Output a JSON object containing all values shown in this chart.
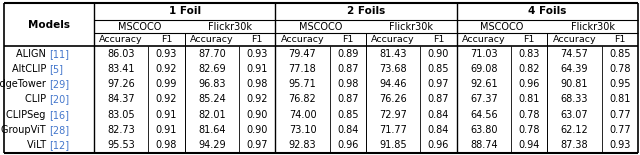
{
  "col_groups": [
    "1 Foil",
    "2 Foils",
    "4 Foils"
  ],
  "sub_groups": [
    "MSCOCO",
    "Flickr30k",
    "MSCOCO",
    "Flickr30k",
    "MSCOCO",
    "Flickr30k"
  ],
  "leaf_cols": [
    "Accuracy",
    "F1",
    "Accuracy",
    "F1",
    "Accuracy",
    "F1",
    "Accuracy",
    "F1",
    "Accuracy",
    "F1",
    "Accuracy",
    "F1"
  ],
  "models": [
    "ALIGN",
    "AltCLIP",
    "BridgeTower",
    "CLIP",
    "CLIPSeg",
    "GroupViT",
    "ViLT"
  ],
  "cite_nums": [
    "11",
    "5",
    "29",
    "20",
    "16",
    "28",
    "12"
  ],
  "data": [
    [
      "86.03",
      "0.93",
      "87.70",
      "0.93",
      "79.47",
      "0.89",
      "81.43",
      "0.90",
      "71.03",
      "0.83",
      "74.57",
      "0.85"
    ],
    [
      "83.41",
      "0.92",
      "82.69",
      "0.91",
      "77.18",
      "0.87",
      "73.68",
      "0.85",
      "69.08",
      "0.82",
      "64.39",
      "0.78"
    ],
    [
      "97.26",
      "0.99",
      "96.83",
      "0.98",
      "95.71",
      "0.98",
      "94.46",
      "0.97",
      "92.61",
      "0.96",
      "90.81",
      "0.95"
    ],
    [
      "84.37",
      "0.92",
      "85.24",
      "0.92",
      "76.82",
      "0.87",
      "76.26",
      "0.87",
      "67.37",
      "0.81",
      "68.33",
      "0.81"
    ],
    [
      "83.05",
      "0.91",
      "82.01",
      "0.90",
      "74.00",
      "0.85",
      "72.97",
      "0.84",
      "64.56",
      "0.78",
      "63.07",
      "0.77"
    ],
    [
      "82.73",
      "0.91",
      "81.64",
      "0.90",
      "73.10",
      "0.84",
      "71.77",
      "0.84",
      "63.80",
      "0.78",
      "62.12",
      "0.77"
    ],
    [
      "95.53",
      "0.98",
      "94.29",
      "0.97",
      "92.83",
      "0.96",
      "91.85",
      "0.96",
      "88.74",
      "0.94",
      "87.38",
      "0.93"
    ]
  ],
  "cite_color": "#4477CC",
  "bg_color": "#FFFFFF",
  "text_color": "#000000",
  "figsize": [
    6.4,
    1.55
  ],
  "dpi": 100
}
